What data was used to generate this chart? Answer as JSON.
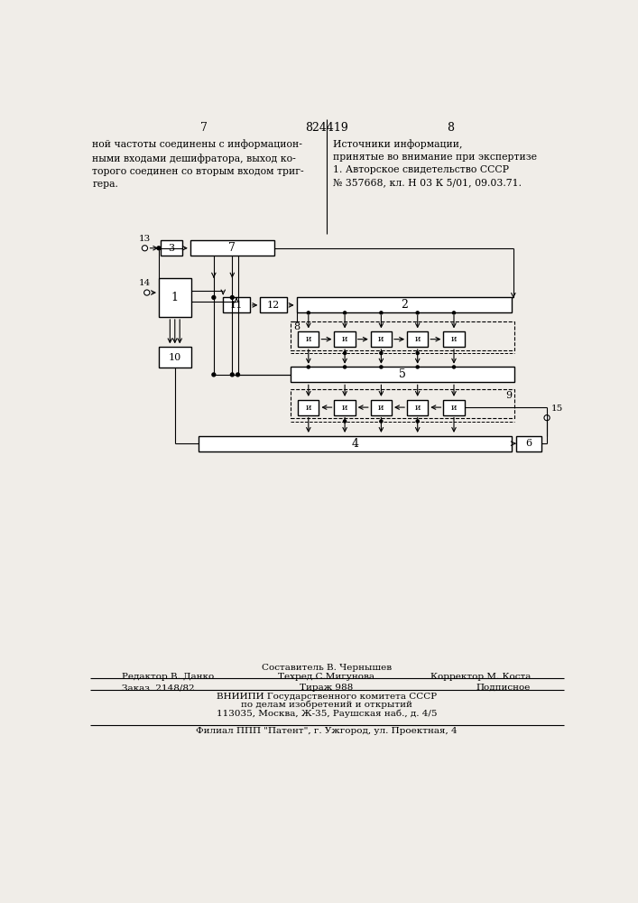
{
  "bg_color": "#f0ede8",
  "page_number_left": "7",
  "page_number_center": "824419",
  "page_number_right": "8",
  "text_left": "ной частоты соединены с информацион-\nными входами дешифратора, выход ко-\nторого соединен со вторым входом триг-\nгера.",
  "text_right": "Источники информации,\nпринятые во внимание при экспертизе\n1. Авторское свидетельство СССР\n№ 357668, кл. Н 03 К 5/01, 09.03.71.",
  "footer_line1": "Составитель В. Чернышев",
  "footer_line2_left": "Редактор В. Данко",
  "footer_line2_center": "Техред С.Мигунова",
  "footer_line2_right": "Корректор М. Коста",
  "footer_line3_left": "Заказ  2148/82",
  "footer_line3_center": "Тираж 988",
  "footer_line3_right": "Подписное",
  "footer_line4": "ВНИИПИ Государственного комитета СССР",
  "footer_line5": "по делам изобретений и открытий",
  "footer_line6": "113035, Москва, Ж-35, Раушская наб., д. 4/5",
  "footer_line7": "Филиал ППП \"Патент\", г. Ужгород, ул. Проектная, 4"
}
